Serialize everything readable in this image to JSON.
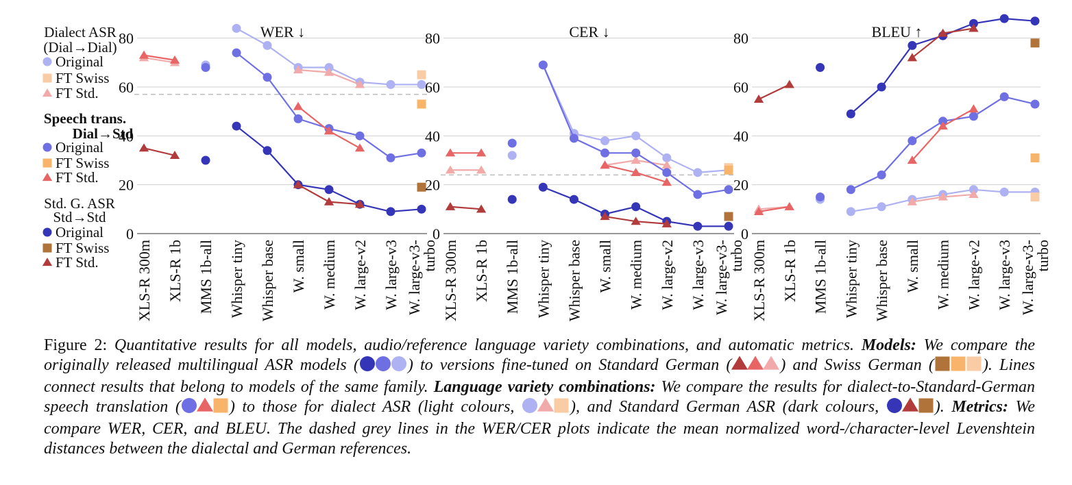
{
  "colors": {
    "dial_original": "#aeb1f2",
    "dial_ft_swiss": "#f9cca6",
    "dial_ft_std": "#f1aaa9",
    "trans_original": "#6f6fe4",
    "trans_ft_swiss": "#f7b46a",
    "trans_ft_std": "#e86565",
    "std_original": "#3535b8",
    "std_ft_swiss": "#b0733a",
    "std_ft_std": "#b23b3b",
    "grid": "#cfcfcf",
    "dashed": "#bdbdbd"
  },
  "legend": {
    "groups": [
      {
        "title_lines": [
          "Dialect ASR",
          "(Dial→Dial)"
        ],
        "bold": false,
        "key": "dial",
        "items": [
          {
            "marker": "circle",
            "label": "Original"
          },
          {
            "marker": "square",
            "label": "FT Swiss"
          },
          {
            "marker": "triangle",
            "label": "FT Std."
          }
        ]
      },
      {
        "title_lines": [
          "Speech trans.",
          "Dial→Std"
        ],
        "bold": true,
        "key": "trans",
        "items": [
          {
            "marker": "circle",
            "label": "Original"
          },
          {
            "marker": "square",
            "label": "FT Swiss"
          },
          {
            "marker": "triangle",
            "label": "FT Std."
          }
        ]
      },
      {
        "title_lines": [
          "Std. G. ASR",
          "Std→Std"
        ],
        "bold": false,
        "key": "std",
        "items": [
          {
            "marker": "circle",
            "label": "Original"
          },
          {
            "marker": "square",
            "label": "FT Swiss"
          },
          {
            "marker": "triangle",
            "label": "FT Std."
          }
        ]
      }
    ]
  },
  "chart_data": [
    {
      "type": "line",
      "title": "WER ↓",
      "ylim": [
        0,
        90
      ],
      "yticks": [
        0,
        20,
        40,
        60,
        80
      ],
      "grid": true,
      "categories": [
        [
          "XLS-R 300m"
        ],
        [
          "XLS-R 1b"
        ],
        [
          "MMS 1b-all"
        ],
        [
          "Whisper tiny"
        ],
        [
          "Whisper base"
        ],
        [
          "W. small"
        ],
        [
          "W. medium"
        ],
        [
          "W. large-v2"
        ],
        [
          "W. large-v3"
        ],
        [
          "W. large-v3-",
          "turbo"
        ]
      ],
      "dashed_line": 57,
      "series": [
        {
          "key": "dial_original",
          "marker": "circle",
          "segments": [
            {
              "x": [
                2
              ],
              "y": [
                69
              ]
            },
            {
              "x": [
                3,
                4,
                5,
                6,
                7,
                8,
                9
              ],
              "y": [
                84,
                77,
                68,
                68,
                62,
                61,
                61
              ]
            }
          ]
        },
        {
          "key": "dial_ft_std",
          "marker": "triangle",
          "segments": [
            {
              "x": [
                0,
                1
              ],
              "y": [
                72,
                70
              ]
            },
            {
              "x": [
                5,
                6,
                7
              ],
              "y": [
                67,
                66,
                61
              ]
            }
          ]
        },
        {
          "key": "dial_ft_swiss",
          "marker": "square",
          "segments": [
            {
              "x": [
                9
              ],
              "y": [
                65
              ]
            }
          ]
        },
        {
          "key": "trans_original",
          "marker": "circle",
          "segments": [
            {
              "x": [
                2
              ],
              "y": [
                68
              ]
            },
            {
              "x": [
                3,
                4,
                5,
                6,
                7,
                8,
                9
              ],
              "y": [
                74,
                64,
                47,
                43,
                40,
                31,
                33
              ]
            }
          ]
        },
        {
          "key": "trans_ft_std",
          "marker": "triangle",
          "segments": [
            {
              "x": [
                0,
                1
              ],
              "y": [
                73,
                71
              ]
            },
            {
              "x": [
                5,
                6,
                7
              ],
              "y": [
                52,
                42,
                35
              ]
            }
          ]
        },
        {
          "key": "trans_ft_swiss",
          "marker": "square",
          "segments": [
            {
              "x": [
                9
              ],
              "y": [
                53
              ]
            }
          ]
        },
        {
          "key": "std_original",
          "marker": "circle",
          "segments": [
            {
              "x": [
                2
              ],
              "y": [
                30
              ]
            },
            {
              "x": [
                3,
                4,
                5,
                6,
                7,
                8,
                9
              ],
              "y": [
                44,
                34,
                20,
                18,
                12,
                9,
                10
              ]
            }
          ]
        },
        {
          "key": "std_ft_std",
          "marker": "triangle",
          "segments": [
            {
              "x": [
                0,
                1
              ],
              "y": [
                35,
                32
              ]
            },
            {
              "x": [
                5,
                6,
                7
              ],
              "y": [
                20,
                13,
                12
              ]
            }
          ]
        },
        {
          "key": "std_ft_swiss",
          "marker": "square",
          "segments": [
            {
              "x": [
                9
              ],
              "y": [
                19
              ]
            }
          ]
        }
      ]
    },
    {
      "type": "line",
      "title": "CER ↓",
      "ylim": [
        0,
        90
      ],
      "yticks": [
        0,
        20,
        40,
        60,
        80
      ],
      "grid": true,
      "categories": [
        [
          "XLS-R 300m"
        ],
        [
          "XLS-R 1b"
        ],
        [
          "MMS 1b-all"
        ],
        [
          "Whisper tiny"
        ],
        [
          "Whisper base"
        ],
        [
          "W. small"
        ],
        [
          "W. medium"
        ],
        [
          "W. large-v2"
        ],
        [
          "W. large-v3"
        ],
        [
          "W. large-v3-",
          "turbo"
        ]
      ],
      "dashed_line": 24,
      "series": [
        {
          "key": "dial_original",
          "marker": "circle",
          "segments": [
            {
              "x": [
                2
              ],
              "y": [
                32
              ]
            },
            {
              "x": [
                3,
                4,
                5,
                6,
                7,
                8,
                9
              ],
              "y": [
                69,
                41,
                38,
                40,
                31,
                25,
                26
              ]
            }
          ]
        },
        {
          "key": "dial_ft_std",
          "marker": "triangle",
          "segments": [
            {
              "x": [
                0,
                1
              ],
              "y": [
                26,
                26
              ]
            },
            {
              "x": [
                5,
                6,
                7
              ],
              "y": [
                28,
                30,
                28
              ]
            }
          ]
        },
        {
          "key": "dial_ft_swiss",
          "marker": "square",
          "segments": [
            {
              "x": [
                9
              ],
              "y": [
                27
              ]
            }
          ]
        },
        {
          "key": "trans_original",
          "marker": "circle",
          "segments": [
            {
              "x": [
                2
              ],
              "y": [
                37
              ]
            },
            {
              "x": [
                3,
                4,
                5,
                6,
                7,
                8,
                9
              ],
              "y": [
                69,
                39,
                33,
                33,
                25,
                16,
                18
              ]
            }
          ]
        },
        {
          "key": "trans_ft_std",
          "marker": "triangle",
          "segments": [
            {
              "x": [
                0,
                1
              ],
              "y": [
                33,
                33
              ]
            },
            {
              "x": [
                5,
                6,
                7
              ],
              "y": [
                28,
                25,
                21
              ]
            }
          ]
        },
        {
          "key": "trans_ft_swiss",
          "marker": "square",
          "segments": [
            {
              "x": [
                9
              ],
              "y": [
                26
              ]
            }
          ]
        },
        {
          "key": "std_original",
          "marker": "circle",
          "segments": [
            {
              "x": [
                2
              ],
              "y": [
                14
              ]
            },
            {
              "x": [
                3,
                4,
                5,
                6,
                7,
                8,
                9
              ],
              "y": [
                19,
                14,
                8,
                11,
                5,
                3,
                3
              ]
            }
          ]
        },
        {
          "key": "std_ft_std",
          "marker": "triangle",
          "segments": [
            {
              "x": [
                0,
                1
              ],
              "y": [
                11,
                10
              ]
            },
            {
              "x": [
                5,
                6,
                7
              ],
              "y": [
                7,
                5,
                4
              ]
            }
          ]
        },
        {
          "key": "std_ft_swiss",
          "marker": "square",
          "segments": [
            {
              "x": [
                9
              ],
              "y": [
                7
              ]
            }
          ]
        }
      ]
    },
    {
      "type": "line",
      "title": "BLEU ↑",
      "ylim": [
        0,
        90
      ],
      "yticks": [
        0,
        20,
        40,
        60,
        80
      ],
      "grid": true,
      "categories": [
        [
          "XLS-R 300m"
        ],
        [
          "XLS-R 1b"
        ],
        [
          "MMS 1b-all"
        ],
        [
          "Whisper tiny"
        ],
        [
          "Whisper base"
        ],
        [
          "W. small"
        ],
        [
          "W. medium"
        ],
        [
          "W. large-v2"
        ],
        [
          "W. large-v3"
        ],
        [
          "W. large-v3-",
          "turbo"
        ]
      ],
      "dashed_line": null,
      "series": [
        {
          "key": "dial_original",
          "marker": "circle",
          "segments": [
            {
              "x": [
                2
              ],
              "y": [
                14
              ]
            },
            {
              "x": [
                3,
                4,
                5,
                6,
                7,
                8,
                9
              ],
              "y": [
                9,
                11,
                14,
                16,
                18,
                17,
                17
              ]
            }
          ]
        },
        {
          "key": "dial_ft_std",
          "marker": "triangle",
          "segments": [
            {
              "x": [
                0,
                1
              ],
              "y": [
                10,
                11
              ]
            },
            {
              "x": [
                5,
                6,
                7
              ],
              "y": [
                13,
                15,
                16
              ]
            }
          ]
        },
        {
          "key": "dial_ft_swiss",
          "marker": "square",
          "segments": [
            {
              "x": [
                9
              ],
              "y": [
                15
              ]
            }
          ]
        },
        {
          "key": "trans_original",
          "marker": "circle",
          "segments": [
            {
              "x": [
                2
              ],
              "y": [
                15
              ]
            },
            {
              "x": [
                3,
                4,
                5,
                6,
                7,
                8,
                9
              ],
              "y": [
                18,
                24,
                38,
                46,
                48,
                56,
                53
              ]
            }
          ]
        },
        {
          "key": "trans_ft_std",
          "marker": "triangle",
          "segments": [
            {
              "x": [
                0,
                1
              ],
              "y": [
                9,
                11
              ]
            },
            {
              "x": [
                5,
                6,
                7
              ],
              "y": [
                30,
                44,
                51
              ]
            }
          ]
        },
        {
          "key": "trans_ft_swiss",
          "marker": "square",
          "segments": [
            {
              "x": [
                9
              ],
              "y": [
                31
              ]
            }
          ]
        },
        {
          "key": "std_original",
          "marker": "circle",
          "segments": [
            {
              "x": [
                2
              ],
              "y": [
                68
              ]
            },
            {
              "x": [
                3,
                4,
                5,
                6,
                7,
                8,
                9
              ],
              "y": [
                49,
                60,
                77,
                81,
                86,
                88,
                87
              ]
            }
          ]
        },
        {
          "key": "std_ft_std",
          "marker": "triangle",
          "segments": [
            {
              "x": [
                0,
                1
              ],
              "y": [
                55,
                61
              ]
            },
            {
              "x": [
                5,
                6,
                7
              ],
              "y": [
                72,
                82,
                84
              ]
            }
          ]
        },
        {
          "key": "std_ft_swiss",
          "marker": "square",
          "segments": [
            {
              "x": [
                9
              ],
              "y": [
                78
              ]
            }
          ]
        }
      ]
    }
  ],
  "caption": {
    "label": "Figure 2:",
    "p1": "Quantitative results for all models, audio/reference language variety combinations, and automatic metrics.",
    "h_models": "Models:",
    "p2": "We compare the originally released multilingual ASR models (",
    "p3": ") to versions fine-tuned on Standard German (",
    "p4": ") and Swiss German (",
    "p5": "). Lines connect results that belong to models of the same family.",
    "h_lang": "Language variety combinations:",
    "p6": "We compare the results for dialect-to-Standard-German speech translation (",
    "p7": ") to those for dialect ASR (light colours,",
    "p8": "), and Standard German ASR (dark colours,",
    "p9": ").",
    "h_metrics": "Metrics:",
    "p10": "We compare WER, CER, and BLEU. The dashed grey lines in the WER/CER plots indicate the mean normalized word-/character-level Levenshtein distances between the dialectal and German references."
  }
}
